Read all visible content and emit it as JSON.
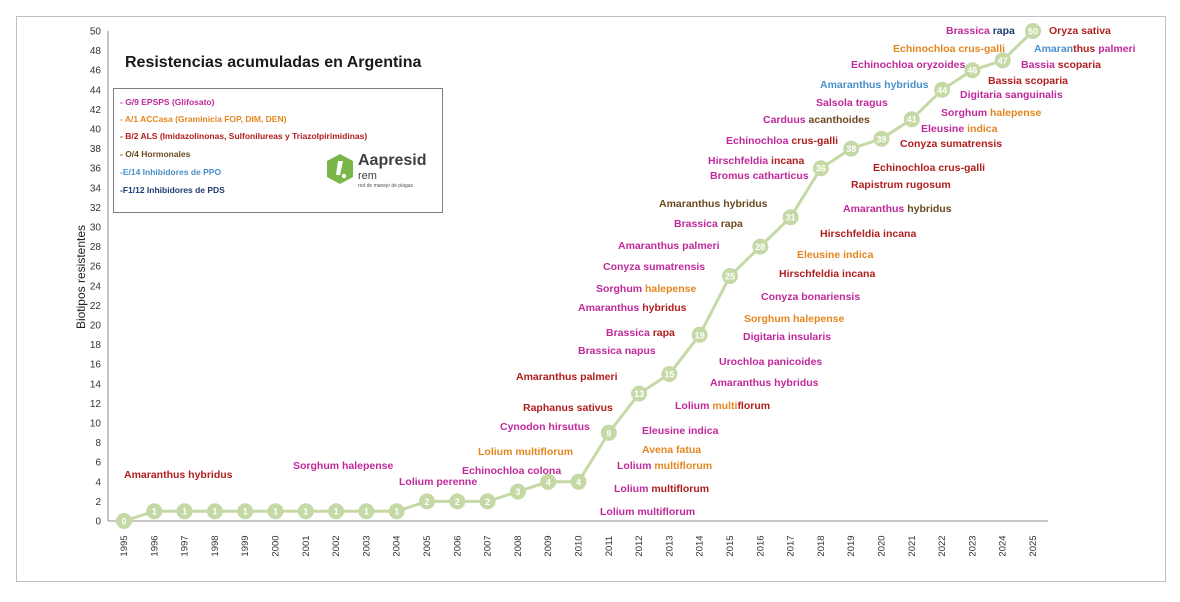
{
  "chart_data": {
    "type": "line",
    "title": "Resistencias acumuladas en Argentina",
    "xlabel": "",
    "ylabel": "Biotipos resistentes",
    "ylim": [
      0,
      50
    ],
    "yticks": [
      0,
      2,
      4,
      6,
      8,
      10,
      12,
      14,
      16,
      18,
      20,
      22,
      24,
      26,
      28,
      30,
      32,
      34,
      36,
      38,
      40,
      42,
      44,
      46,
      48,
      50
    ],
    "x": [
      "1995",
      "1996",
      "1997",
      "1998",
      "1999",
      "2000",
      "2001",
      "2002",
      "2003",
      "2004",
      "2005",
      "2006",
      "2007",
      "2008",
      "2009",
      "2010",
      "2011",
      "2012",
      "2013",
      "2014",
      "2015",
      "2016",
      "2017",
      "2018",
      "2019",
      "2020",
      "2021",
      "2022",
      "2023",
      "2024",
      "2025"
    ],
    "series": [
      {
        "values": [
          0,
          1,
          1,
          1,
          1,
          1,
          1,
          1,
          1,
          1,
          2,
          2,
          2,
          3,
          4,
          4,
          9,
          13,
          15,
          19,
          25,
          28,
          31,
          36,
          38,
          39,
          41,
          44,
          46,
          47,
          50
        ]
      }
    ],
    "line_color": "#c5d9a6",
    "marker_label_color": "#ffffff",
    "grid": false,
    "legend_position": "top-left",
    "legend": [
      {
        "text": "- G/9 EPSPS (Glifosato)",
        "color": "#c0299b"
      },
      {
        "text": "- A/1 ACCasa (Graminicia FOP, DIM, DEN)",
        "color": "#e3861e"
      },
      {
        "text": "- B/2 ALS (Imidazolinonas, Sulfonilureas y Triazolpirimidinas)",
        "color": "#b01e1e"
      },
      {
        "text": "- O/4 Hormonales",
        "color": "#6b4a1e"
      },
      {
        "text": "-E/14 Inhibidores de PPO",
        "color": "#4a8fc9"
      },
      {
        "text": "-F1/12  Inhibidores de PDS",
        "color": "#1f3a6e"
      }
    ],
    "annotations": [
      {
        "parts": [
          {
            "t": "Amaranthus hybridus",
            "c": "#b01e1e"
          }
        ],
        "year": "1996"
      },
      {
        "parts": [
          {
            "t": "Sorghum halepense",
            "c": "#c0299b"
          }
        ],
        "year": "2002"
      },
      {
        "parts": [
          {
            "t": "Lolium perenne",
            "c": "#c0299b"
          }
        ],
        "year": "2005"
      },
      {
        "parts": [
          {
            "t": "Echinochloa colona",
            "c": "#c0299b"
          }
        ],
        "year": "2007"
      },
      {
        "parts": [
          {
            "t": "Lolium multiflorum",
            "c": "#e3861e"
          }
        ],
        "year": "2008"
      },
      {
        "parts": [
          {
            "t": "Cynodon hirsutus",
            "c": "#c0299b"
          }
        ],
        "year": "2008"
      },
      {
        "parts": [
          {
            "t": "Raphanus sativus",
            "c": "#b01e1e"
          }
        ],
        "year": "2009"
      },
      {
        "parts": [
          {
            "t": "Amaranthus palmeri",
            "c": "#b01e1e"
          }
        ],
        "year": "2009"
      },
      {
        "parts": [
          {
            "t": "Brassica napus",
            "c": "#c0299b"
          }
        ],
        "year": "2011"
      },
      {
        "parts": [
          {
            "t": "Brassica ",
            "c": "#c0299b"
          },
          {
            "t": "rapa",
            "c": "#b01e1e"
          }
        ],
        "year": "2011"
      },
      {
        "parts": [
          {
            "t": "Amaranthus ",
            "c": "#c0299b"
          },
          {
            "t": "hybridus",
            "c": "#b01e1e"
          }
        ],
        "year": "2011"
      },
      {
        "parts": [
          {
            "t": "Sorghum ",
            "c": "#c0299b"
          },
          {
            "t": "halepense",
            "c": "#e3861e"
          }
        ],
        "year": "2011"
      },
      {
        "parts": [
          {
            "t": "Conyza sumatrensis",
            "c": "#c0299b"
          }
        ],
        "year": "2012"
      },
      {
        "parts": [
          {
            "t": "Amaranthus palmeri",
            "c": "#c0299b"
          }
        ],
        "year": "2012"
      },
      {
        "parts": [
          {
            "t": "Brassica ",
            "c": "#c0299b"
          },
          {
            "t": "rapa",
            "c": "#6b4a1e"
          }
        ],
        "year": "2014"
      },
      {
        "parts": [
          {
            "t": "Amaranthus ",
            "c": "#6b4a1e"
          },
          {
            "t": "hybridus",
            "c": "#6b4a1e"
          }
        ],
        "year": "2014"
      },
      {
        "parts": [
          {
            "t": "Lolium multiflorum",
            "c": "#c0299b"
          }
        ],
        "year": "2011"
      },
      {
        "parts": [
          {
            "t": "Lolium ",
            "c": "#c0299b"
          },
          {
            "t": "multiflorum",
            "c": "#b01e1e"
          }
        ],
        "year": "2011"
      },
      {
        "parts": [
          {
            "t": "Lolium ",
            "c": "#c0299b"
          },
          {
            "t": "multiflorum",
            "c": "#e3861e"
          }
        ],
        "year": "2011"
      },
      {
        "parts": [
          {
            "t": "Avena fatua",
            "c": "#e3861e"
          }
        ],
        "year": "2012"
      },
      {
        "parts": [
          {
            "t": "Eleusine indica",
            "c": "#c0299b"
          }
        ],
        "year": "2012"
      },
      {
        "parts": [
          {
            "t": "Lolium ",
            "c": "#c0299b"
          },
          {
            "t": "multi",
            "c": "#e3861e"
          },
          {
            "t": "florum",
            "c": "#b01e1e"
          }
        ],
        "year": "2014"
      },
      {
        "parts": [
          {
            "t": "Amaranthus hybridus",
            "c": "#c0299b"
          }
        ],
        "year": "2015"
      },
      {
        "parts": [
          {
            "t": "Urochloa panicoides",
            "c": "#c0299b"
          }
        ],
        "year": "2015"
      },
      {
        "parts": [
          {
            "t": "Digitaria insularis",
            "c": "#c0299b"
          }
        ],
        "year": "2016"
      },
      {
        "parts": [
          {
            "t": "Sorghum halepense",
            "c": "#e3861e"
          }
        ],
        "year": "2016"
      },
      {
        "parts": [
          {
            "t": "Conyza bonariensis",
            "c": "#c0299b"
          }
        ],
        "year": "2017"
      },
      {
        "parts": [
          {
            "t": "Hirschfeldia incana",
            "c": "#b01e1e"
          }
        ],
        "year": "2017"
      },
      {
        "parts": [
          {
            "t": "Eleusine indica",
            "c": "#e3861e"
          }
        ],
        "year": "2018"
      },
      {
        "parts": [
          {
            "t": "Hirschfeldia ",
            "c": "#b01e1e"
          },
          {
            "t": "incana",
            "c": "#b01e1e"
          }
        ],
        "year": "2018"
      },
      {
        "parts": [
          {
            "t": "Amaranthus ",
            "c": "#c0299b"
          },
          {
            "t": "hybridus",
            "c": "#6b4a1e"
          }
        ],
        "year": "2019"
      },
      {
        "parts": [
          {
            "t": "Rapistrum rugosum",
            "c": "#b01e1e"
          }
        ],
        "year": "2019"
      },
      {
        "parts": [
          {
            "t": "Echinochloa crus-galli",
            "c": "#b01e1e"
          }
        ],
        "year": "2020"
      },
      {
        "parts": [
          {
            "t": "Bromus catharticus",
            "c": "#c0299b"
          }
        ],
        "year": "2015"
      },
      {
        "parts": [
          {
            "t": "Hirschfeldia ",
            "c": "#c0299b"
          },
          {
            "t": "incana",
            "c": "#b01e1e"
          }
        ],
        "year": "2015"
      },
      {
        "parts": [
          {
            "t": "Echinochloa ",
            "c": "#c0299b"
          },
          {
            "t": "crus-galli",
            "c": "#b01e1e"
          }
        ],
        "year": "2016"
      },
      {
        "parts": [
          {
            "t": "Carduus ",
            "c": "#c0299b"
          },
          {
            "t": "acanthoides",
            "c": "#6b4a1e"
          }
        ],
        "year": "2017"
      },
      {
        "parts": [
          {
            "t": "Salsola tragus",
            "c": "#c0299b"
          }
        ],
        "year": "2018"
      },
      {
        "parts": [
          {
            "t": "Amaranthus hybridus",
            "c": "#4a8fc9"
          }
        ],
        "year": "2019"
      },
      {
        "parts": [
          {
            "t": "Conyza sumatrensis",
            "c": "#b01e1e"
          }
        ],
        "year": "2021"
      },
      {
        "parts": [
          {
            "t": "Eleusine ",
            "c": "#c0299b"
          },
          {
            "t": "indica",
            "c": "#e3861e"
          }
        ],
        "year": "2021"
      },
      {
        "parts": [
          {
            "t": "Sorghum ",
            "c": "#c0299b"
          },
          {
            "t": "halepense",
            "c": "#e3861e"
          }
        ],
        "year": "2022"
      },
      {
        "parts": [
          {
            "t": "Digitaria sanguinalis",
            "c": "#c0299b"
          }
        ],
        "year": "2023"
      },
      {
        "parts": [
          {
            "t": "Bassia scoparia",
            "c": "#b01e1e"
          }
        ],
        "year": "2023"
      },
      {
        "parts": [
          {
            "t": "Echinochloa oryzoides",
            "c": "#c0299b"
          }
        ],
        "year": "2021"
      },
      {
        "parts": [
          {
            "t": "Echinochloa crus-galli",
            "c": "#e3861e"
          }
        ],
        "year": "2022"
      },
      {
        "parts": [
          {
            "t": "Brassica ",
            "c": "#c0299b"
          },
          {
            "t": "rapa",
            "c": "#1f3a6e"
          }
        ],
        "year": "2023"
      },
      {
        "parts": [
          {
            "t": "Bassia ",
            "c": "#c0299b"
          },
          {
            "t": "scoparia",
            "c": "#b01e1e"
          }
        ],
        "year": "2025"
      },
      {
        "parts": [
          {
            "t": "Amaran",
            "c": "#4a8fc9"
          },
          {
            "t": "thus ",
            "c": "#b01e1e"
          },
          {
            "t": "palmeri",
            "c": "#c0299b"
          }
        ],
        "year": "2025"
      },
      {
        "parts": [
          {
            "t": "Oryza sativa",
            "c": "#b01e1e"
          }
        ],
        "year": "2025"
      }
    ]
  },
  "logo": {
    "brand": "Aapresid",
    "sub": "rem",
    "tagline": "red de manejo de plagas",
    "color": "#7ab648"
  }
}
